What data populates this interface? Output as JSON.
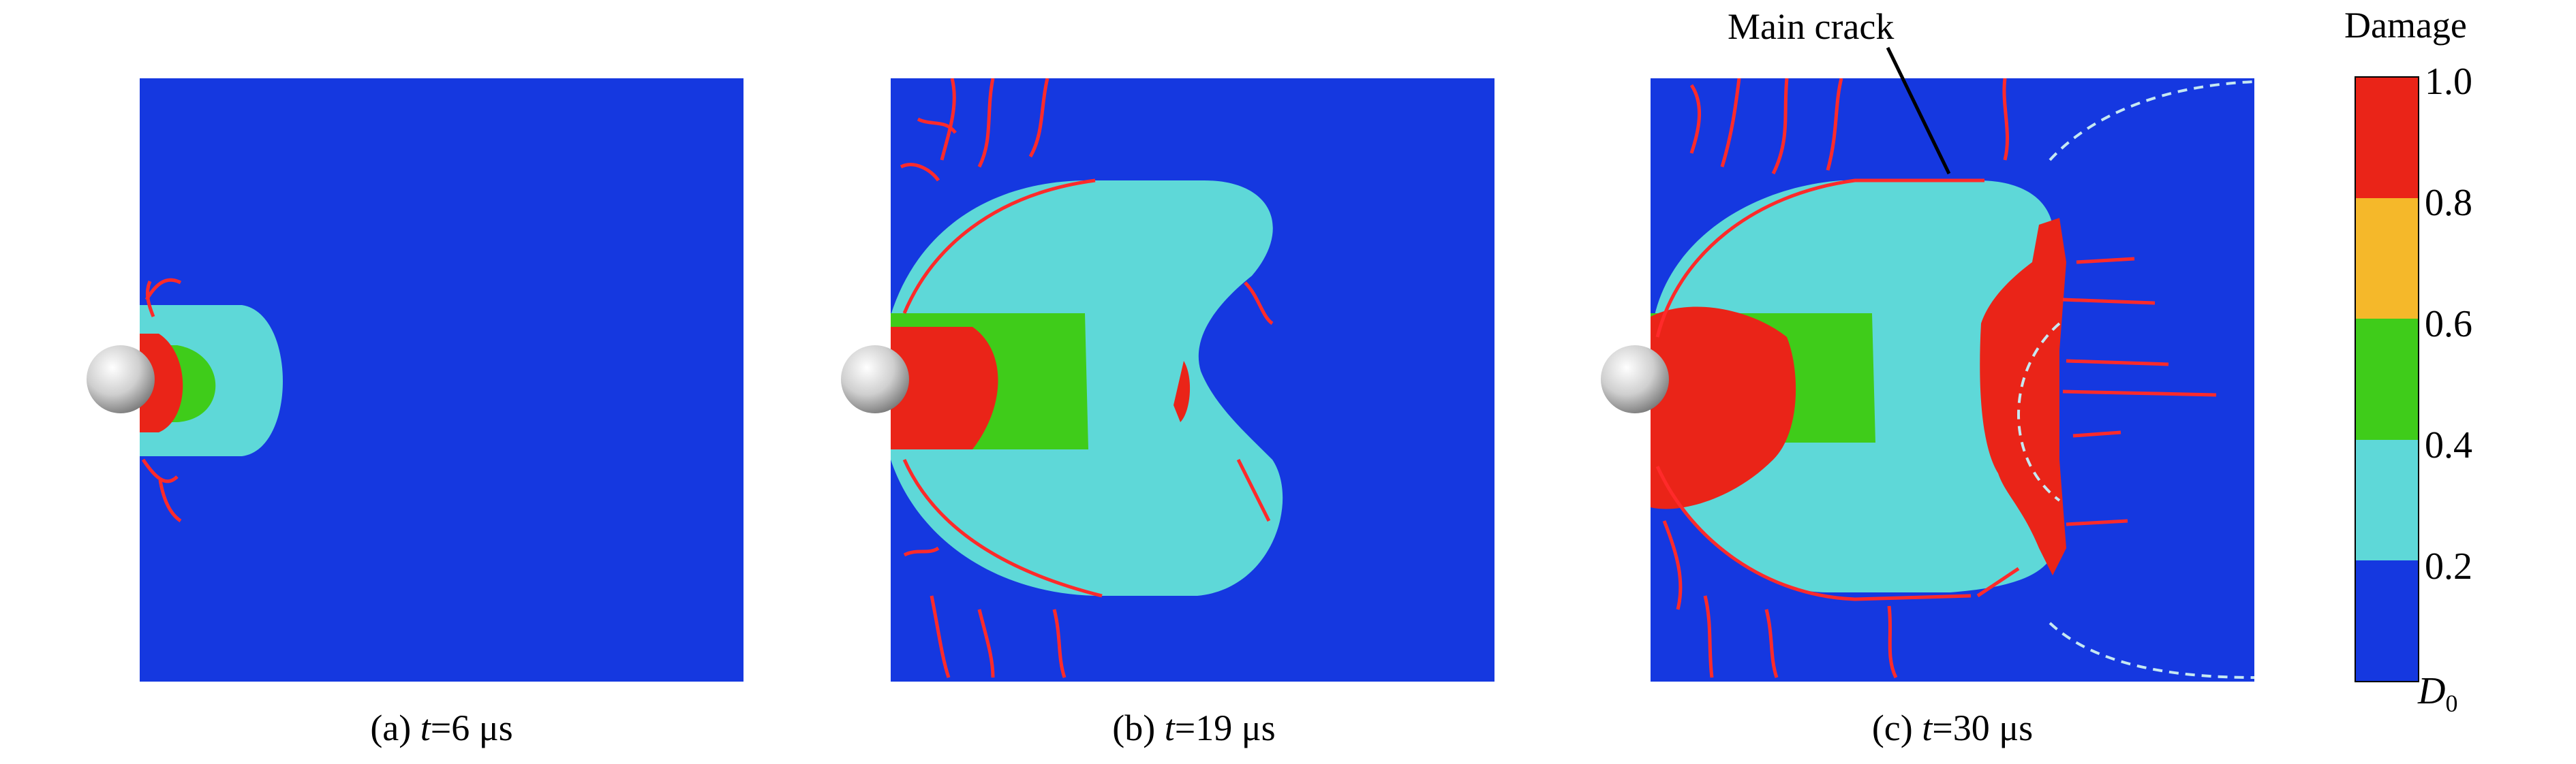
{
  "panels": [
    {
      "caption_prefix": "(a) ",
      "caption_var": "t",
      "caption_value": "=6 μs"
    },
    {
      "caption_prefix": "(b) ",
      "caption_var": "t",
      "caption_value": "=19 μs"
    },
    {
      "caption_prefix": "(c) ",
      "caption_var": "t",
      "caption_value": "=30 μs"
    }
  ],
  "annotation": {
    "text": "Main crack"
  },
  "colorbar": {
    "title": "Damage",
    "ticks": [
      "1.0",
      "0.8",
      "0.6",
      "0.4",
      "0.2"
    ],
    "min_label": "D",
    "min_label_sub": "0",
    "levels": [
      {
        "range": "0.8–1.0",
        "color": "#ea2418"
      },
      {
        "range": "0.6–0.8",
        "color": "#f5b82a"
      },
      {
        "range": "0.4–0.6",
        "color": "#3fcc1a"
      },
      {
        "range": "0.2–0.4",
        "color": "#5ed8d8"
      },
      {
        "range": "D0–0.2",
        "color": "#1538e0"
      }
    ]
  },
  "colors": {
    "background": "#1538e0",
    "cyan": "#5ed8d8",
    "green": "#3fcc1a",
    "yellow": "#f5b82a",
    "red": "#ea2418",
    "crack": "#ff2a2a"
  }
}
